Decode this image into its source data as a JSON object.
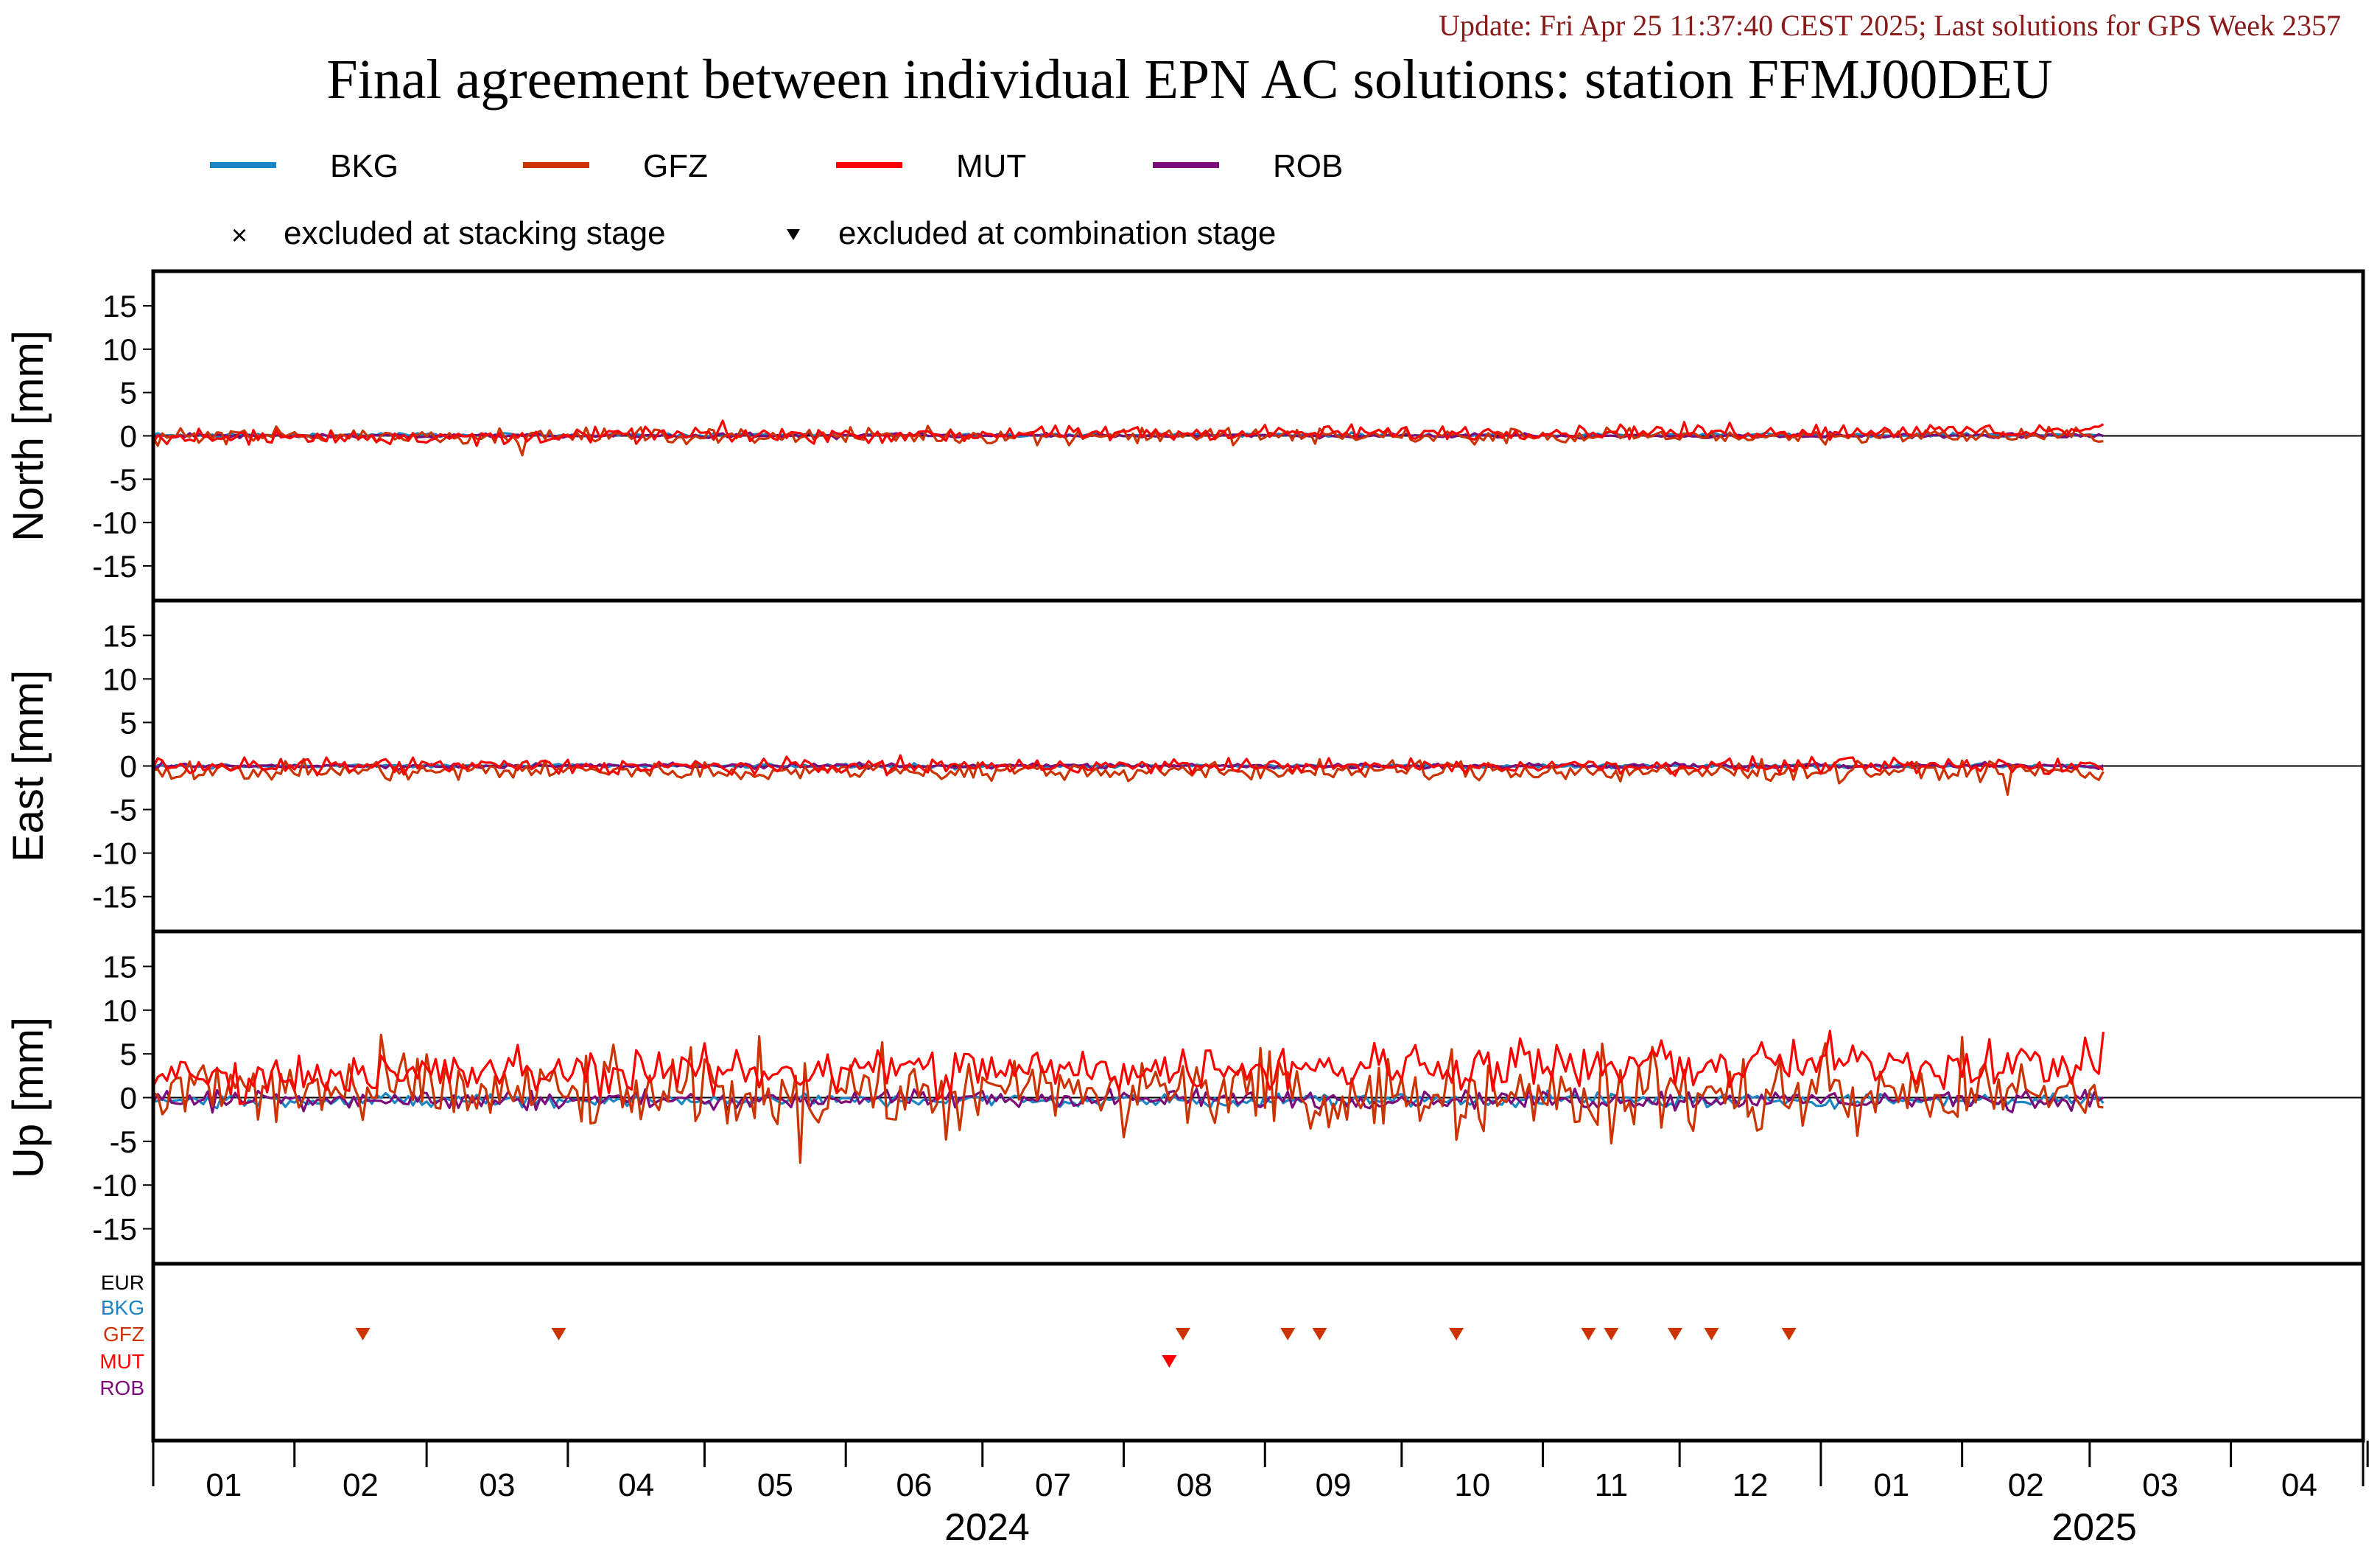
{
  "update_text": "Update: Fri Apr 25 11:37:40 CEST 2025; Last solutions for GPS Week 2357",
  "title": "Final agreement between individual EPN AC solutions: station FFMJ00DEU",
  "legend": {
    "series": [
      {
        "name": "BKG",
        "color": "#1a85c2"
      },
      {
        "name": "GFZ",
        "color": "#cc3300"
      },
      {
        "name": "MUT",
        "color": "#ff0000"
      },
      {
        "name": "ROB",
        "color": "#7b0a7b"
      }
    ],
    "excluded_stacking": "excluded at stacking stage",
    "excluded_combination": "excluded at combination stage"
  },
  "chart_data": {
    "type": "line",
    "x_range": [
      "2024-01-01",
      "2025-04-30"
    ],
    "x_ticks": [
      "01",
      "02",
      "03",
      "04",
      "05",
      "06",
      "07",
      "08",
      "09",
      "10",
      "11",
      "12",
      "01",
      "02",
      "03",
      "04"
    ],
    "year_labels": [
      "2024",
      "2025"
    ],
    "y_ticks": [
      15,
      10,
      5,
      0,
      -5,
      -10,
      -15
    ],
    "last_date": "2025-03-04",
    "panels": [
      {
        "ylabel": "North [mm]",
        "ylim": [
          -19,
          19
        ],
        "series": [
          {
            "name": "BKG",
            "level": [
              0.1,
              0.1
            ],
            "amp": 0.2
          },
          {
            "name": "GFZ",
            "level": [
              0.0,
              0.0
            ],
            "amp": 0.8
          },
          {
            "name": "MUT",
            "level": [
              -0.2,
              0.7
            ],
            "amp": 0.8
          },
          {
            "name": "ROB",
            "level": [
              0.0,
              0.0
            ],
            "amp": 0.25
          }
        ]
      },
      {
        "ylabel": "East [mm]",
        "ylim": [
          -19,
          19
        ],
        "series": [
          {
            "name": "BKG",
            "level": [
              0.0,
              0.0
            ],
            "amp": 0.2
          },
          {
            "name": "GFZ",
            "level": [
              -0.6,
              -0.6
            ],
            "amp": 1.0
          },
          {
            "name": "MUT",
            "level": [
              0.0,
              0.0
            ],
            "amp": 0.8
          },
          {
            "name": "ROB",
            "level": [
              0.0,
              0.0
            ],
            "amp": 0.3
          }
        ]
      },
      {
        "ylabel": "Up [mm]",
        "ylim": [
          -19,
          19
        ],
        "series": [
          {
            "name": "BKG",
            "level": [
              -0.3,
              -0.3
            ],
            "amp": 0.7
          },
          {
            "name": "GFZ",
            "level": [
              0.5,
              0.5
            ],
            "amp": 4.0
          },
          {
            "name": "MUT",
            "level": [
              2.5,
              4.0
            ],
            "amp": 2.5
          },
          {
            "name": "ROB",
            "level": [
              -0.2,
              -0.2
            ],
            "amp": 1.0
          }
        ]
      }
    ],
    "exclusion_rows": [
      "EUR",
      "BKG",
      "GFZ",
      "MUT",
      "ROB"
    ],
    "exclusions": {
      "GFZ": [
        "2024-02-16",
        "2024-03-30",
        "2024-08-14",
        "2024-09-06",
        "2024-09-13",
        "2024-10-13",
        "2024-11-11",
        "2024-11-16",
        "2024-11-30",
        "2024-12-08",
        "2024-12-25"
      ],
      "MUT": [
        "2024-08-11"
      ]
    }
  }
}
